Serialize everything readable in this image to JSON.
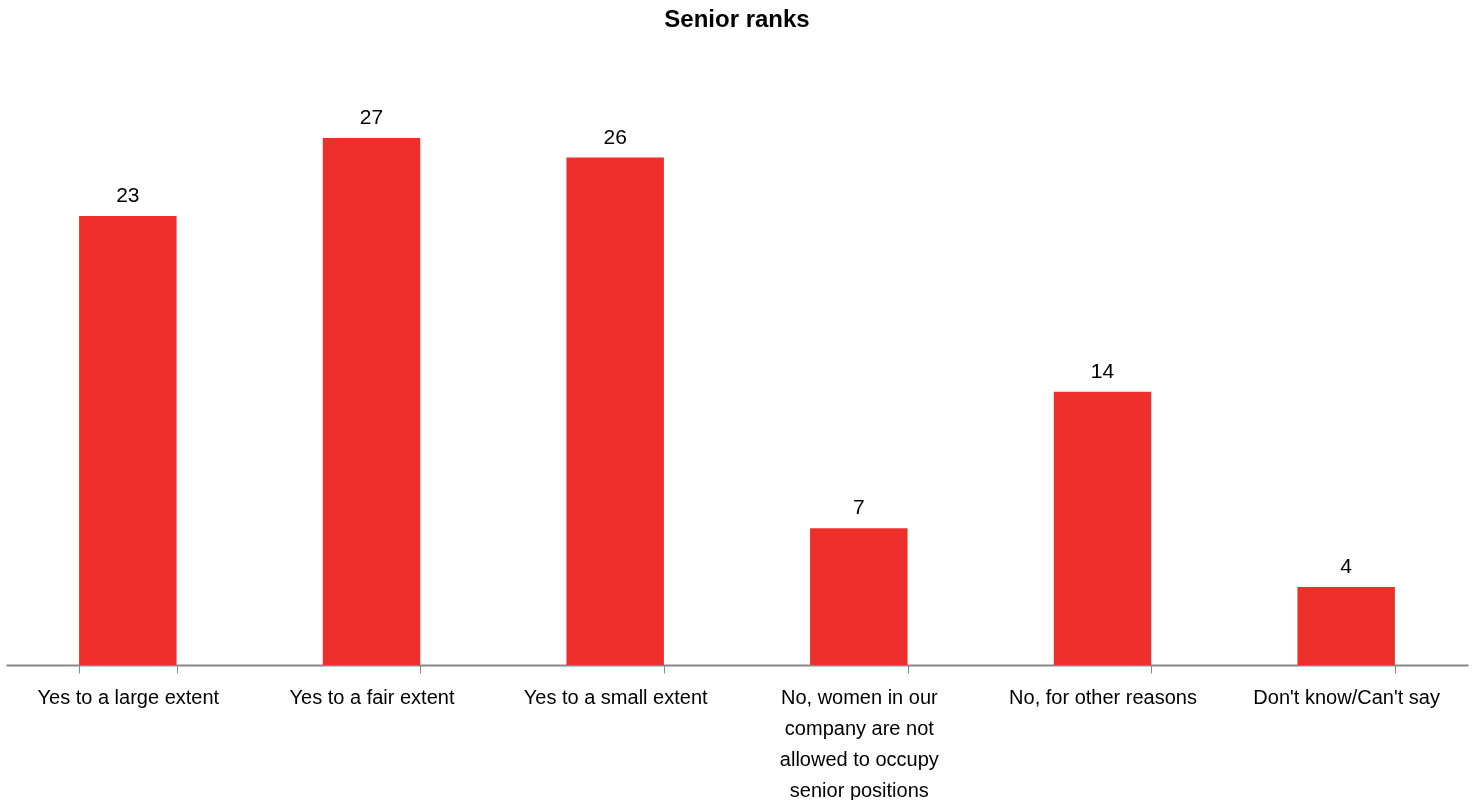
{
  "chart_data": {
    "type": "bar",
    "title": "Senior ranks",
    "categories": [
      "Yes to a large extent",
      "Yes to a fair extent",
      "Yes to a small extent",
      "No, women in our company are not allowed to occupy senior positions",
      "No, for other reasons",
      "Don't know/Can't say"
    ],
    "values": [
      23,
      27,
      26,
      7,
      14,
      4
    ],
    "color": "#ee2e2a",
    "data_labels": true
  }
}
